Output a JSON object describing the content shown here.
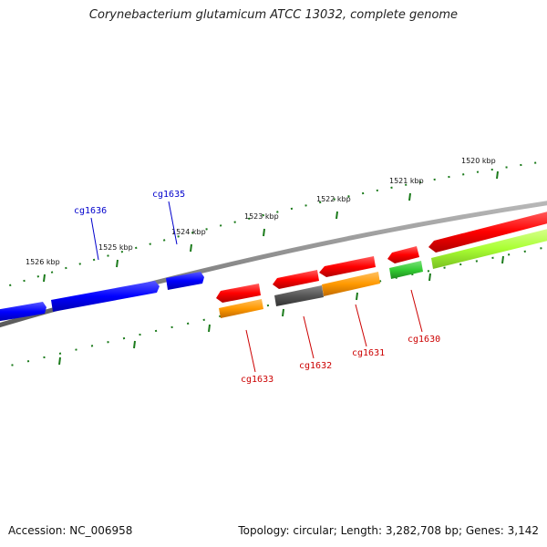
{
  "header": {
    "title": "Corynebacterium glutamicum ATCC 13032, complete genome"
  },
  "footer": {
    "accession": "Accession: NC_006958",
    "summary": "Topology: circular; Length: 3,282,708 bp; Genes: 3,142"
  },
  "ruler": {
    "labels": [
      "1520 kbp",
      "1521 kbp",
      "1522 kbp",
      "1523 kbp",
      "1524 kbp",
      "1525 kbp",
      "1526 kbp"
    ],
    "tick_color": "#1a7a1a"
  },
  "backbone": {
    "color": "#8a8a8a"
  },
  "genes": [
    {
      "name": "cg1636",
      "strand": "+",
      "color": "#0000ff",
      "label_color": "#0000cc"
    },
    {
      "name": "cg1635",
      "strand": "+",
      "color": "#0000ff",
      "label_color": "#0000cc"
    },
    {
      "name": "cg1633",
      "strand": "-",
      "color": "#ff0000",
      "label_color": "#cc0000"
    },
    {
      "name": "cg1632",
      "strand": "-",
      "color": "#ff0000",
      "label_color": "#cc0000"
    },
    {
      "name": "cg1631",
      "strand": "-",
      "color": "#ff0000",
      "label_color": "#cc0000"
    },
    {
      "name": "cg1630",
      "strand": "-",
      "color": "#ff0000",
      "label_color": "#cc0000"
    },
    {
      "name": "",
      "strand": "-",
      "color": "#ff0000",
      "label_color": "#cc0000"
    }
  ],
  "features": [
    {
      "gene": "cg1633",
      "color": "#ff9900"
    },
    {
      "gene": "cg1632",
      "color": "#555555"
    },
    {
      "gene": "cg1631",
      "color": "#ff9900"
    },
    {
      "gene": "cg1630",
      "color": "#33cc33"
    },
    {
      "gene": "",
      "color": "#aaff33"
    }
  ]
}
